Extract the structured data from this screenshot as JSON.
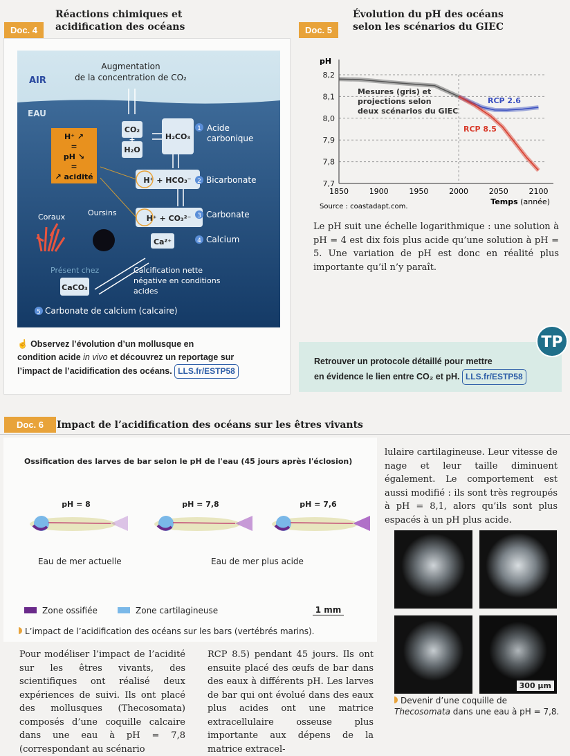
{
  "doc4": {
    "tag": "Doc. 4",
    "title_l1": "Réactions chimiques et",
    "title_l2": "acidification des océans",
    "diagram": {
      "air": "AIR",
      "eau": "EAU",
      "augmentation_l1": "Augmentation",
      "augmentation_l2": "de la concentration de CO₂",
      "co2": "CO₂",
      "plus": "+",
      "h2o": "H₂O",
      "h2co3": "H₂CO₃",
      "h_hco3": "H⁺ + HCO₃⁻",
      "h_co3": "H⁺ + CO₃²⁻",
      "ca": "Ca²⁺",
      "caco3": "CaCO₃",
      "acid_box": [
        "H⁺ ↗",
        "=",
        "pH ↘",
        "=",
        "↗ acidité"
      ],
      "steps": [
        {
          "n": "1",
          "label_l1": "Acide",
          "label_l2": "carbonique"
        },
        {
          "n": "2",
          "label_l1": "Bicarbonate"
        },
        {
          "n": "3",
          "label_l1": "Carbonate"
        },
        {
          "n": "4",
          "label_l1": "Calcium"
        },
        {
          "n": "5",
          "label_l1": "Carbonate de calcium (calcaire)"
        }
      ],
      "coraux": "Coraux",
      "oursins": "Oursins",
      "present": "Présent chez",
      "calcification": [
        "Calcification nette",
        "négative en conditions",
        "acides"
      ]
    },
    "note_l1": "Observez l’évolution d’un mollusque en",
    "note_l2a": "condition acide ",
    "note_l2b": "in vivo",
    "note_l2c": " et découvrez un reportage sur",
    "note_l3": "l’impact de l’acidification des océans.",
    "link": "LLS.fr/ESTP58"
  },
  "doc5": {
    "tag": "Doc. 5",
    "title_l1": "Évolution du pH des océans",
    "title_l2": "selon les scénarios du GIEC",
    "source": "Source : coastadapt.com.",
    "text": "Le pH suit une échelle logarithmique : une solution à pH = 4 est dix fois plus acide qu’une solution à pH = 5. Une variation de pH est donc en réalité plus importante qu’il n’y paraît."
  },
  "chart_data": {
    "type": "line",
    "ylabel": "pH",
    "xlabel_bold": "Temps",
    "xlabel_rest": " (année)",
    "xlim": [
      1850,
      2110
    ],
    "ylim": [
      7.7,
      8.2
    ],
    "xticks": [
      1850,
      1900,
      1950,
      2000,
      2050,
      2100
    ],
    "yticks": [
      "8,2",
      "8,1",
      "8,0",
      "7,9",
      "7,8",
      "7,7"
    ],
    "ytick_values": [
      8.2,
      8.1,
      8.0,
      7.9,
      7.8,
      7.7
    ],
    "grid": true,
    "annotation": [
      "Mesures (gris) et",
      "projections selon",
      "deux scénarios du GIEC"
    ],
    "series": [
      {
        "name": "Mesures",
        "color": "#555555",
        "x": [
          1850,
          1875,
          1900,
          1925,
          1950,
          1970,
          1985,
          2000
        ],
        "y": [
          8.18,
          8.178,
          8.17,
          8.162,
          8.155,
          8.15,
          8.125,
          8.1
        ]
      },
      {
        "name": "RCP 2.6",
        "color": "#3a4fc0",
        "x": [
          2000,
          2015,
          2030,
          2045,
          2060,
          2080,
          2100
        ],
        "y": [
          8.1,
          8.075,
          8.05,
          8.038,
          8.037,
          8.042,
          8.05
        ]
      },
      {
        "name": "RCP 8.5",
        "color": "#d83a2a",
        "x": [
          2000,
          2020,
          2040,
          2055,
          2070,
          2085,
          2100
        ],
        "y": [
          8.1,
          8.06,
          8.01,
          7.96,
          7.89,
          7.82,
          7.76
        ]
      }
    ]
  },
  "tp": {
    "badge": "TP",
    "text_l1": "Retrouver un protocole détaillé pour mettre",
    "text_l2": "en évidence le lien entre CO₂ et pH.",
    "link": "LLS.fr/ESTP58"
  },
  "doc6": {
    "tag": "Doc. 6",
    "title": "Impact de l’acidification des océans sur les êtres vivants",
    "figure_title": "Ossification des larves de bar selon le pH de l'eau (45 jours après l'éclosion)",
    "fish": [
      {
        "ph": "pH = 8"
      },
      {
        "ph": "pH = 7,8"
      },
      {
        "ph": "pH = 7,6"
      }
    ],
    "label_actuelle": "Eau de mer actuelle",
    "label_acide": "Eau de mer plus acide",
    "legend": [
      {
        "label": "Zone ossifiée",
        "color": "#6a2a8a"
      },
      {
        "label": "Zone cartilagineuse",
        "color": "#7ab8e8"
      }
    ],
    "scale": "1 mm",
    "caption": "L’impact de l’acidification des océans sur les bars (vertébrés marins).",
    "col1": "Pour modéliser l’impact de l’acidité sur les êtres vivants, des scientifiques ont réalisé deux expériences de suivi. Ils ont placé des mollusques (Thecosomata) composés d’une coquille calcaire dans une eau à pH = 7,8 (correspondant au scénario",
    "col2": "RCP 8.5) pendant 45 jours. Ils ont ensuite placé des œufs de bar dans des eaux à différents pH. Les larves de bar qui ont évolué dans des eaux plus acides ont une matrice extracellulaire osseuse plus importante aux dépens de la matrice extracel-",
    "col3": "lulaire cartilagineuse. Leur vitesse de nage et leur taille diminuent également. Le comportement est aussi modifié : ils sont très regroupés à pH = 8,1, alors qu’ils sont plus espacés à un pH plus acide.",
    "photo_scale": "300 µm",
    "photo_caption_l1": "Devenir d’une coquille de",
    "photo_caption_l2a": "Thecosomata",
    "photo_caption_l2b": " dans une eau à pH = 7,8."
  }
}
